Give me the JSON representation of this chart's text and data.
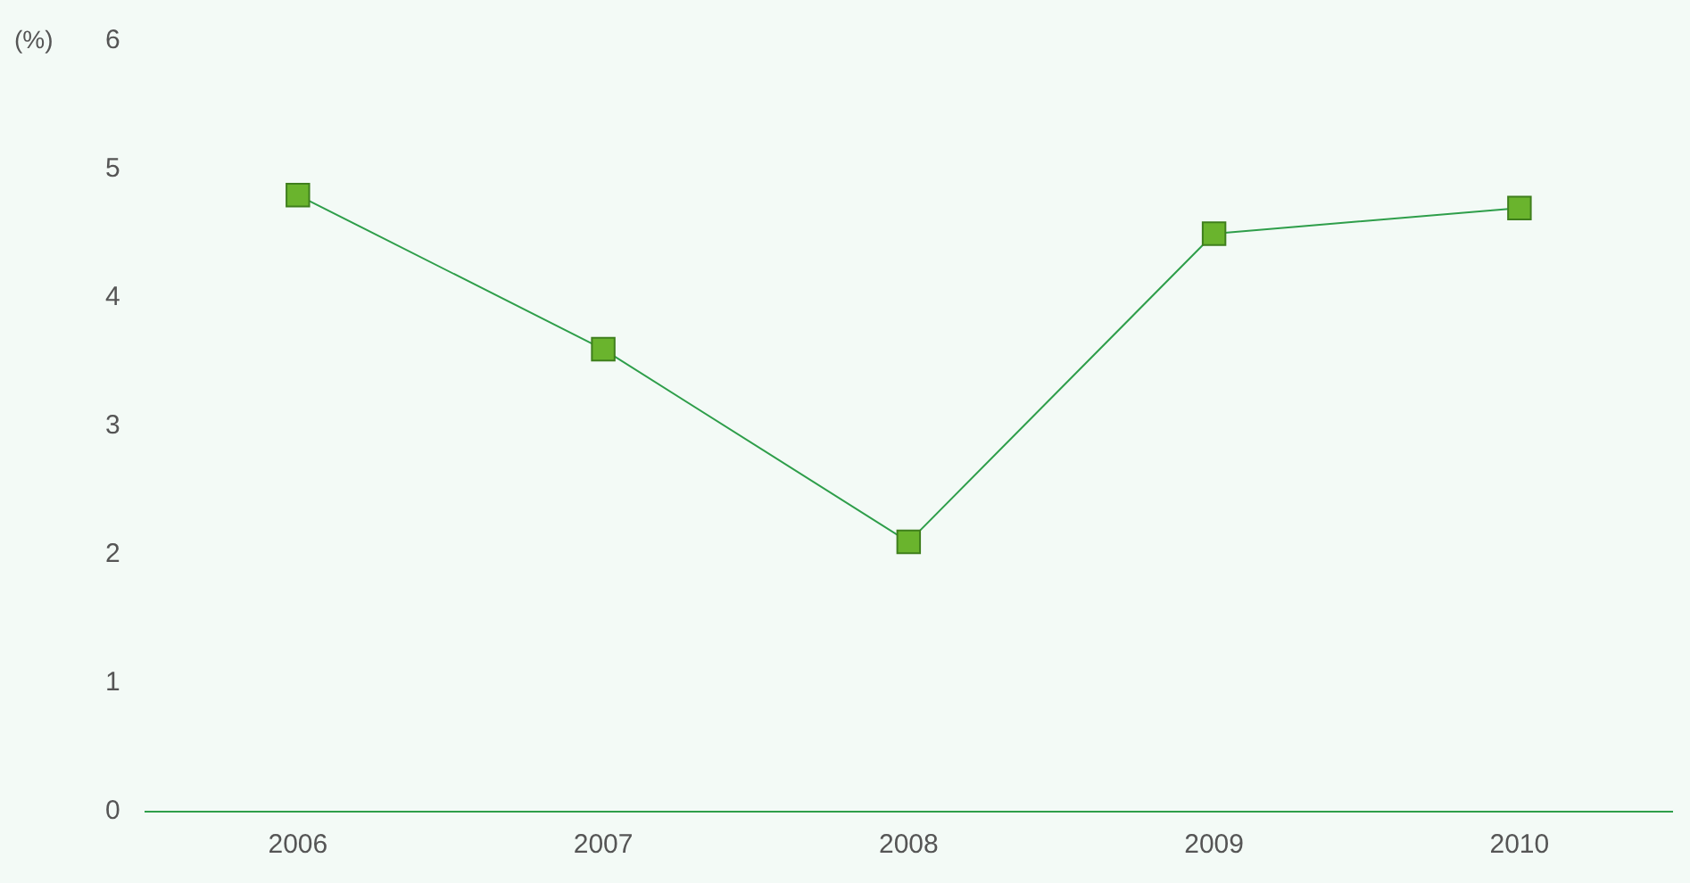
{
  "chart_data": {
    "type": "line",
    "ylabel": "(%)",
    "categories": [
      "2006",
      "2007",
      "2008",
      "2009",
      "2010"
    ],
    "series": [
      {
        "color": "#2e9e4a",
        "values": [
          4.8,
          3.6,
          2.1,
          4.5,
          4.7
        ]
      }
    ],
    "marker": "square",
    "ylim": [
      0,
      6
    ],
    "yticks": [
      0,
      1,
      2,
      3,
      4,
      5,
      6
    ],
    "grid": false,
    "legend": false
  }
}
